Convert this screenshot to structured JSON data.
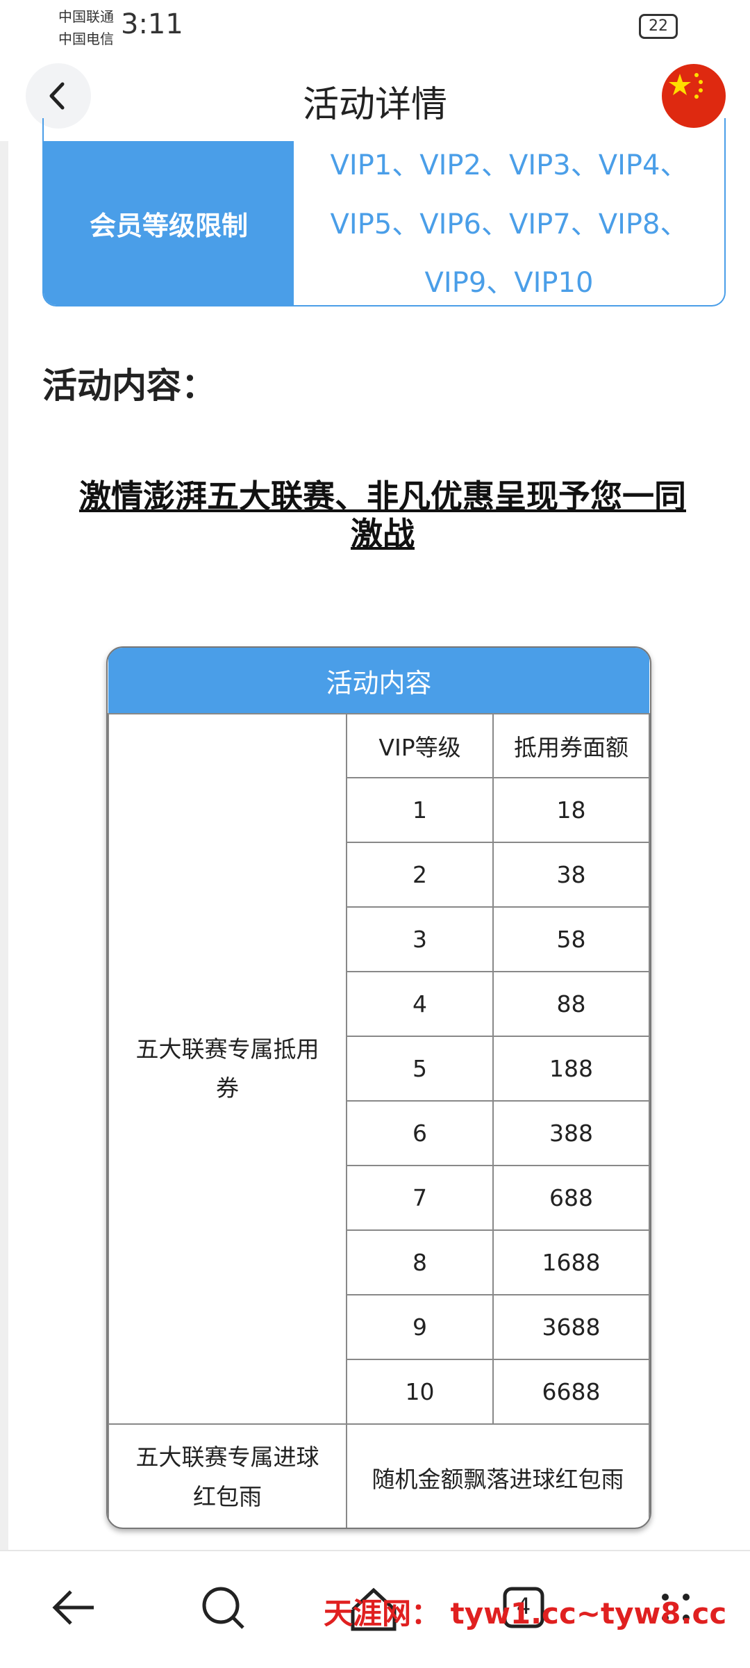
{
  "status_bar": {
    "carrier_1": "中国联通",
    "carrier_2": "中国电信",
    "time": "3:11",
    "battery": "22"
  },
  "header": {
    "title": "活动详情"
  },
  "vip_limit": {
    "label": "会员等级限制",
    "lines": [
      "VIP1、VIP2、VIP3、VIP4、",
      "VIP5、VIP6、VIP7、VIP8、",
      "VIP9、VIP10"
    ]
  },
  "section_title": "活动内容：",
  "headline": {
    "lines": [
      "激情澎湃五大联赛、非凡优惠呈现予您一同",
      "激战"
    ]
  },
  "table": {
    "title": "活动内容",
    "columns": [
      "VIP等级",
      "抵用券面额"
    ],
    "group_1": {
      "label": "五大联赛专属抵用券",
      "rows": [
        [
          1,
          18
        ],
        [
          2,
          38
        ],
        [
          3,
          58
        ],
        [
          4,
          88
        ],
        [
          5,
          188
        ],
        [
          6,
          388
        ],
        [
          7,
          688
        ],
        [
          8,
          1688
        ],
        [
          9,
          3688
        ],
        [
          10,
          6688
        ]
      ]
    },
    "group_2": {
      "label": "五大联赛专属进球红包雨",
      "value": "随机金额飘落进球红包雨"
    }
  },
  "nav": {
    "tabs_count": "4"
  },
  "watermark": "天涯网： tyw1.cc~tyw8.cc"
}
